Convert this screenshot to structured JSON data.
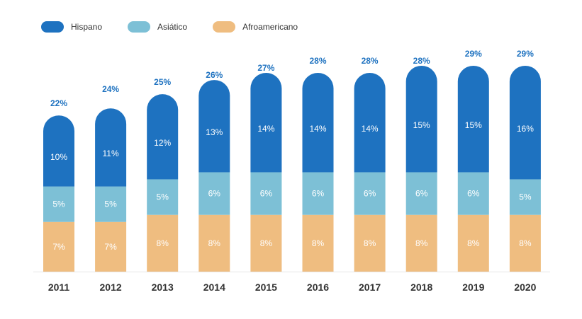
{
  "chart_data": {
    "type": "bar",
    "stacked": true,
    "categories": [
      "2011",
      "2012",
      "2013",
      "2014",
      "2015",
      "2016",
      "2017",
      "2018",
      "2019",
      "2020"
    ],
    "series": [
      {
        "name": "Hispano",
        "color": "#1e72c0",
        "values": [
          10,
          11,
          12,
          13,
          14,
          14,
          14,
          15,
          15,
          16
        ]
      },
      {
        "name": "Asiático",
        "color": "#7dc0d6",
        "values": [
          5,
          5,
          5,
          6,
          6,
          6,
          6,
          6,
          6,
          5
        ]
      },
      {
        "name": "Afroamericano",
        "color": "#efbd80",
        "values": [
          7,
          7,
          8,
          8,
          8,
          8,
          8,
          8,
          8,
          8
        ]
      }
    ],
    "totals": [
      22,
      24,
      25,
      26,
      27,
      28,
      28,
      28,
      29,
      29
    ],
    "legend_position": "top-left",
    "grid": false,
    "ylim": [
      0,
      29
    ]
  }
}
